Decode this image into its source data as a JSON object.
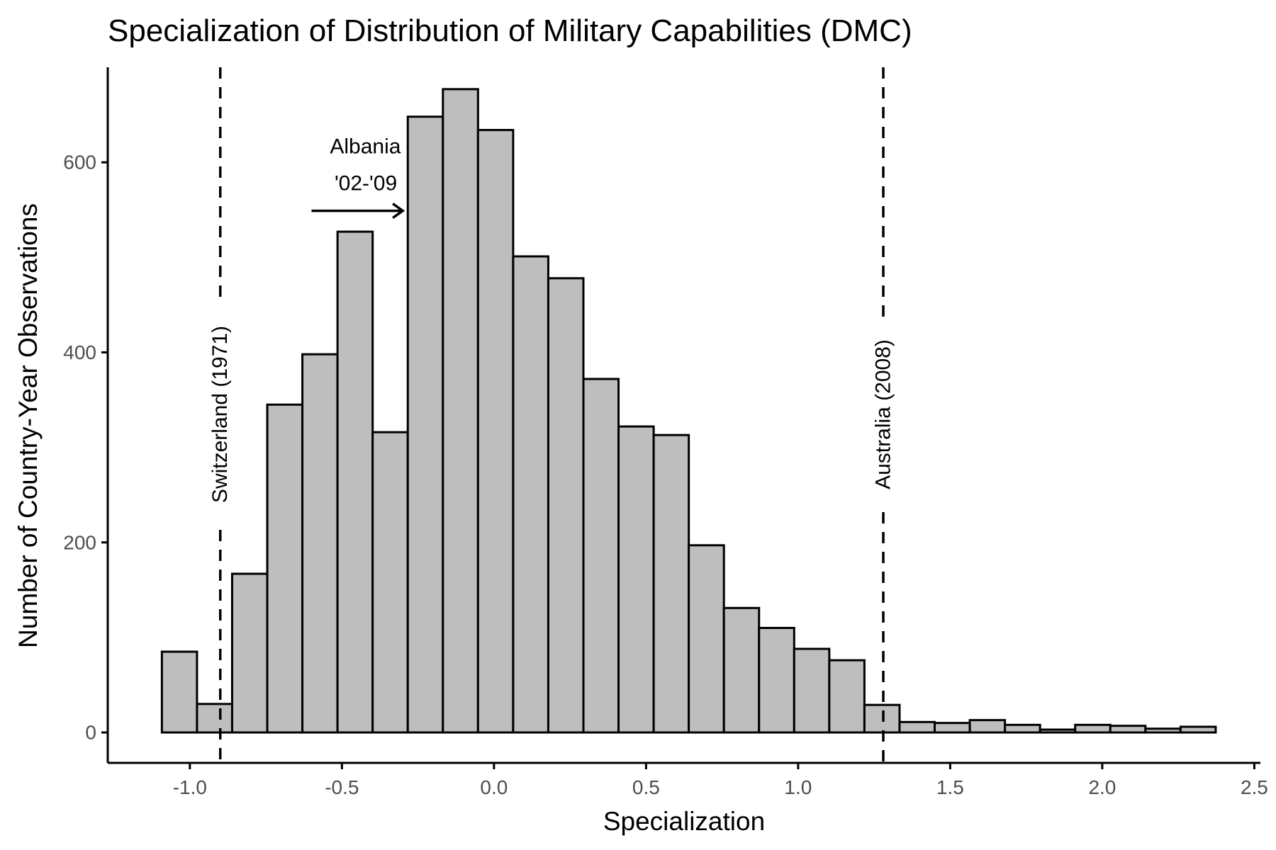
{
  "chart_data": {
    "type": "bar",
    "title": "Specialization of Distribution of Military Capabilities (DMC)",
    "xlabel": "Specialization",
    "ylabel": "Number of Country-Year Observations",
    "xlim": [
      -1.27,
      2.52
    ],
    "ylim": [
      -32,
      700
    ],
    "x_ticks": [
      -1.0,
      -0.5,
      0.0,
      0.5,
      1.0,
      1.5,
      2.0,
      2.5
    ],
    "x_tick_labels": [
      "-1.0",
      "-0.5",
      "0.0",
      "0.5",
      "1.0",
      "1.5",
      "2.0",
      "2.5"
    ],
    "y_ticks": [
      0,
      200,
      400,
      600
    ],
    "y_tick_labels": [
      "0",
      "200",
      "400",
      "600"
    ],
    "grid": false,
    "bin_start": -1.092,
    "bin_width": 0.1155,
    "values": [
      85,
      30,
      167,
      345,
      398,
      527,
      316,
      648,
      677,
      634,
      501,
      478,
      372,
      322,
      313,
      197,
      131,
      110,
      88,
      76,
      29,
      11,
      10,
      13,
      8,
      3,
      8,
      7,
      4,
      6
    ],
    "reference_lines": [
      {
        "x": -0.9,
        "label": "Switzerland (1971)"
      },
      {
        "x": 1.28,
        "label": "Australia (2008)"
      }
    ],
    "annotations": [
      {
        "label_line1": "Albania",
        "label_line2": "'02-'09",
        "arrow_from_x": -0.6,
        "arrow_to_x": -0.3,
        "arrow_y": 549
      }
    ]
  }
}
